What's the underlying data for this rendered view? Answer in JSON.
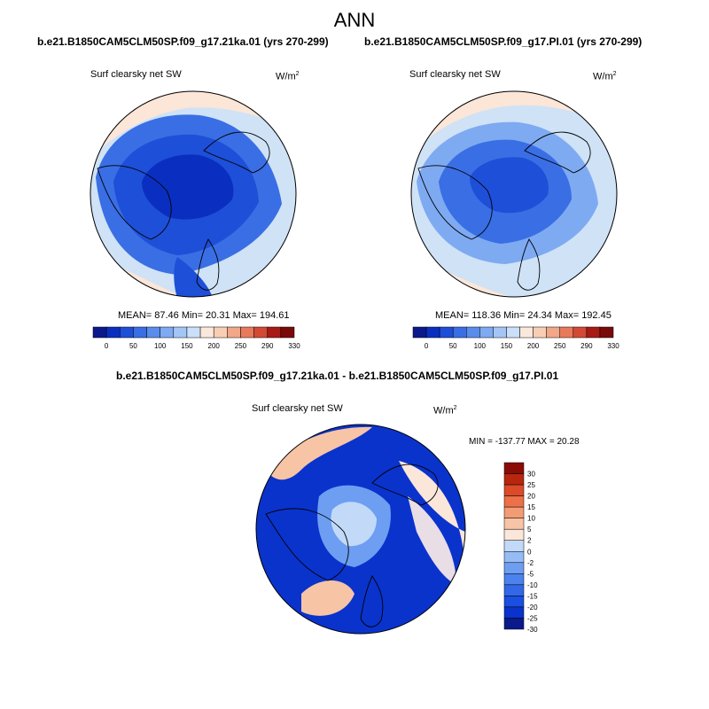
{
  "title": "ANN",
  "panels": [
    {
      "title": "b.e21.B1850CAM5CLM50SP.f09_g17.21ka.01 (yrs 270-299)",
      "variable": "Surf clearsky net SW",
      "units_base": "W/m",
      "units_exp": "2",
      "stats": "MEAN=  87.46  Min=  20.31  Max= 194.61"
    },
    {
      "title": "b.e21.B1850CAM5CLM50SP.f09_g17.PI.01 (yrs 270-299)",
      "variable": "Surf clearsky net SW",
      "units_base": "W/m",
      "units_exp": "2",
      "stats": "MEAN= 118.36  Min=  24.34  Max= 192.45"
    },
    {
      "title": "b.e21.B1850CAM5CLM50SP.f09_g17.21ka.01 - b.e21.B1850CAM5CLM50SP.f09_g17.PI.01",
      "variable": "Surf clearsky net SW",
      "units_base": "W/m",
      "units_exp": "2",
      "stats": "MIN = -137.77  MAX =  20.28"
    }
  ],
  "colors": {
    "seq": [
      "#0a1a8c",
      "#0a2fc0",
      "#1e4fd8",
      "#3a6ee4",
      "#5a8cec",
      "#7eaaf2",
      "#a4c6f6",
      "#cadff8",
      "#fbe8dc",
      "#f8cfb5",
      "#f2a789",
      "#e87a5b",
      "#d24a35",
      "#a81a14",
      "#7a0a08"
    ],
    "diff": [
      "#0a1a8c",
      "#0a33cc",
      "#1a4fe0",
      "#3268e8",
      "#4c82ee",
      "#6e9ef2",
      "#96bcf6",
      "#c2daf8",
      "#fbe6da",
      "#f7c4a6",
      "#f39c74",
      "#ec7048",
      "#dc4a2a",
      "#b8260e",
      "#8a0c04"
    ]
  },
  "chart_data": [
    {
      "type": "heatmap",
      "projection": "north polar stereographic",
      "title": "b.e21.B1850CAM5CLM50SP.f09_g17.21ka.01 (yrs 270-299)",
      "variable": "Surf clearsky net SW",
      "units": "W/m2",
      "stats": {
        "mean": 87.46,
        "min": 20.31,
        "max": 194.61
      },
      "colorbar_labels": [
        "0",
        "50",
        "100",
        "150",
        "200",
        "250",
        "290",
        "330"
      ],
      "colorbar_orientation": "horizontal"
    },
    {
      "type": "heatmap",
      "projection": "north polar stereographic",
      "title": "b.e21.B1850CAM5CLM50SP.f09_g17.PI.01 (yrs 270-299)",
      "variable": "Surf clearsky net SW",
      "units": "W/m2",
      "stats": {
        "mean": 118.36,
        "min": 24.34,
        "max": 192.45
      },
      "colorbar_labels": [
        "0",
        "50",
        "100",
        "150",
        "200",
        "250",
        "290",
        "330"
      ],
      "colorbar_orientation": "horizontal"
    },
    {
      "type": "heatmap",
      "projection": "north polar stereographic",
      "title": "b.e21.B1850CAM5CLM50SP.f09_g17.21ka.01 - b.e21.B1850CAM5CLM50SP.f09_g17.PI.01",
      "variable": "Surf clearsky net SW",
      "units": "W/m2",
      "stats": {
        "min": -137.77,
        "max": 20.28
      },
      "colorbar_labels": [
        "30",
        "25",
        "20",
        "15",
        "10",
        "5",
        "2",
        "0",
        "-2",
        "-5",
        "-10",
        "-15",
        "-20",
        "-25",
        "-30"
      ],
      "colorbar_orientation": "vertical"
    }
  ]
}
